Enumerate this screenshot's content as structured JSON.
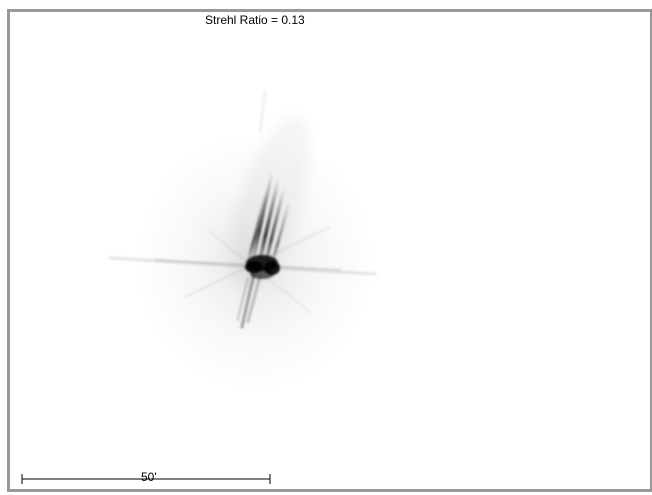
{
  "plot": {
    "title": "Strehl Ratio = 0.13"
  },
  "scale_bar": {
    "label": "50'"
  },
  "colors": {
    "frame_border": "#999999",
    "background": "#ffffff",
    "psf_core": "#000000"
  }
}
